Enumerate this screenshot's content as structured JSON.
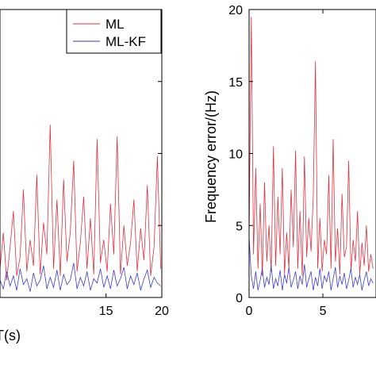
{
  "chart_data": [
    {
      "type": "line",
      "ylabel": "",
      "xlabel": "T(s)",
      "xlim": [
        5.5,
        20
      ],
      "ylim": [
        0,
        20
      ],
      "x_ticks": [
        15,
        20
      ],
      "legend": {
        "placement": "top-right",
        "entries": [
          "ML",
          "ML-KF"
        ]
      },
      "series": [
        {
          "name": "ML",
          "color": "#e03040",
          "x": [
            5.5,
            5.8,
            6.1,
            6.4,
            6.7,
            7.0,
            7.3,
            7.6,
            7.9,
            8.2,
            8.5,
            8.8,
            9.1,
            9.4,
            9.7,
            10.0,
            10.3,
            10.6,
            10.9,
            11.2,
            11.5,
            11.8,
            12.1,
            12.4,
            12.7,
            13.0,
            13.3,
            13.6,
            13.9,
            14.2,
            14.5,
            14.8,
            15.1,
            15.4,
            15.7,
            16.0,
            16.3,
            16.6,
            16.9,
            17.2,
            17.5,
            17.8,
            18.1,
            18.4,
            18.7,
            19.0,
            19.3,
            19.6,
            19.9
          ],
          "values": [
            2.0,
            4.5,
            1.2,
            3.5,
            6.0,
            1.5,
            2.8,
            7.5,
            1.8,
            4.0,
            2.2,
            8.5,
            1.6,
            5.2,
            3.0,
            12.0,
            2.0,
            6.8,
            1.5,
            8.2,
            2.5,
            4.5,
            9.5,
            1.8,
            3.8,
            7.0,
            2.0,
            5.5,
            1.6,
            11.0,
            2.4,
            4.0,
            1.8,
            6.5,
            3.0,
            11.2,
            1.6,
            5.0,
            2.2,
            3.8,
            6.8,
            1.8,
            4.8,
            2.6,
            7.8,
            1.5,
            3.5,
            9.8,
            2.0
          ]
        },
        {
          "name": "ML-KF",
          "color": "#3a3ad8",
          "x": [
            5.5,
            5.8,
            6.1,
            6.4,
            6.7,
            7.0,
            7.3,
            7.6,
            7.9,
            8.2,
            8.5,
            8.8,
            9.1,
            9.4,
            9.7,
            10.0,
            10.3,
            10.6,
            10.9,
            11.2,
            11.5,
            11.8,
            12.1,
            12.4,
            12.7,
            13.0,
            13.3,
            13.6,
            13.9,
            14.2,
            14.5,
            14.8,
            15.1,
            15.4,
            15.7,
            16.0,
            16.3,
            16.6,
            16.9,
            17.2,
            17.5,
            17.8,
            18.1,
            18.4,
            18.7,
            19.0,
            19.3,
            19.6,
            19.9
          ],
          "values": [
            1.2,
            0.6,
            1.8,
            0.8,
            1.5,
            0.5,
            2.0,
            0.9,
            1.3,
            0.4,
            1.7,
            0.8,
            1.2,
            2.2,
            0.6,
            1.4,
            0.7,
            1.9,
            0.5,
            1.6,
            0.9,
            1.2,
            2.4,
            0.6,
            1.4,
            0.8,
            1.8,
            0.5,
            1.3,
            1.0,
            2.0,
            0.7,
            1.5,
            0.6,
            1.9,
            0.8,
            1.3,
            2.1,
            0.6,
            1.5,
            0.9,
            1.7,
            0.5,
            1.3,
            1.9,
            0.7,
            1.4,
            1.0,
            0.8
          ]
        }
      ]
    },
    {
      "type": "line",
      "ylabel": "Frequency error/(Hz)",
      "xlabel": "",
      "xlim": [
        0,
        8.6
      ],
      "ylim": [
        0,
        20
      ],
      "x_ticks": [
        0,
        5
      ],
      "y_ticks": [
        0,
        5,
        10,
        15,
        20
      ],
      "series": [
        {
          "name": "ML",
          "color": "#e03040",
          "x": [
            0.0,
            0.15,
            0.3,
            0.45,
            0.6,
            0.75,
            0.9,
            1.05,
            1.2,
            1.35,
            1.5,
            1.65,
            1.8,
            1.95,
            2.1,
            2.25,
            2.4,
            2.55,
            2.7,
            2.85,
            3.0,
            3.15,
            3.3,
            3.45,
            3.6,
            3.75,
            3.9,
            4.05,
            4.2,
            4.35,
            4.5,
            4.65,
            4.8,
            4.95,
            5.1,
            5.25,
            5.4,
            5.55,
            5.7,
            5.85,
            6.0,
            6.15,
            6.3,
            6.45,
            6.6,
            6.75,
            6.9,
            7.05,
            7.2,
            7.35,
            7.5,
            7.65,
            7.8,
            7.95,
            8.1,
            8.25,
            8.4
          ],
          "values": [
            4.0,
            19.5,
            3.0,
            9.0,
            2.0,
            6.5,
            1.5,
            8.0,
            2.5,
            5.0,
            1.8,
            10.5,
            2.2,
            7.0,
            3.0,
            9.0,
            1.6,
            4.5,
            2.0,
            7.5,
            3.5,
            10.2,
            2.0,
            6.0,
            1.5,
            9.8,
            2.8,
            5.5,
            3.2,
            7.0,
            16.4,
            2.0,
            5.5,
            1.8,
            4.0,
            3.0,
            8.5,
            2.0,
            11.0,
            2.5,
            4.8,
            1.6,
            7.2,
            2.8,
            3.5,
            9.5,
            1.8,
            4.0,
            2.5,
            6.0,
            1.6,
            3.8,
            2.2,
            5.0,
            1.8,
            3.0,
            2.0
          ]
        },
        {
          "name": "ML-KF",
          "color": "#3a3ad8",
          "x": [
            0.0,
            0.15,
            0.3,
            0.45,
            0.6,
            0.75,
            0.9,
            1.05,
            1.2,
            1.35,
            1.5,
            1.65,
            1.8,
            1.95,
            2.1,
            2.25,
            2.4,
            2.55,
            2.7,
            2.85,
            3.0,
            3.15,
            3.3,
            3.45,
            3.6,
            3.75,
            3.9,
            4.05,
            4.2,
            4.35,
            4.5,
            4.65,
            4.8,
            4.95,
            5.1,
            5.25,
            5.4,
            5.55,
            5.7,
            5.85,
            6.0,
            6.15,
            6.3,
            6.45,
            6.6,
            6.75,
            6.9,
            7.05,
            7.2,
            7.35,
            7.5,
            7.65,
            7.8,
            7.95,
            8.1,
            8.25,
            8.4
          ],
          "values": [
            4.2,
            1.5,
            0.6,
            1.8,
            0.5,
            1.2,
            2.0,
            0.7,
            1.4,
            0.9,
            2.2,
            0.6,
            1.3,
            0.8,
            1.9,
            0.5,
            1.6,
            1.0,
            2.1,
            0.7,
            1.2,
            1.8,
            0.6,
            1.5,
            0.9,
            2.3,
            0.7,
            1.3,
            1.8,
            0.5,
            1.4,
            0.8,
            2.0,
            0.6,
            1.5,
            1.1,
            1.8,
            0.5,
            1.3,
            2.1,
            0.7,
            1.5,
            0.9,
            1.7,
            0.6,
            1.2,
            2.0,
            0.7,
            1.4,
            0.9,
            1.6,
            0.5,
            1.2,
            1.8,
            0.8,
            1.3,
            1.0
          ]
        }
      ]
    }
  ]
}
